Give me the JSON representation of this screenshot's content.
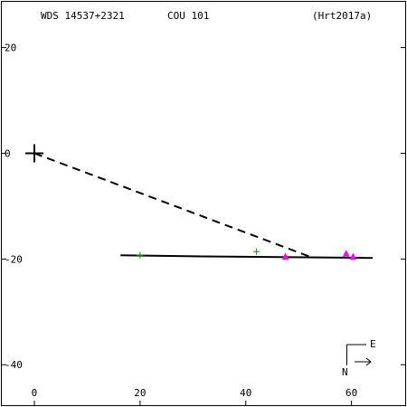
{
  "header": {
    "wds": "WDS 14537+2321",
    "discoverer": "COU 101",
    "reference": "(Hrt2017a)"
  },
  "compass": {
    "east": "E",
    "north": "N"
  },
  "chart_data": {
    "type": "scatter",
    "title": "",
    "xlabel": "",
    "ylabel": "",
    "xlim": [
      -6.5,
      70.5
    ],
    "ylim": [
      -48.0,
      29.0
    ],
    "x_ticks": [
      0,
      20,
      40,
      60
    ],
    "y_ticks": [
      20,
      0,
      -20,
      -40
    ],
    "x_tick_labels": [
      "0",
      "20",
      "40",
      "60"
    ],
    "y_tick_labels": [
      "20",
      "0",
      "-20",
      "-40"
    ],
    "grid": false,
    "primary": {
      "x": 0,
      "y": 0
    },
    "orbit_line": {
      "x": [
        16.3,
        32.0,
        64.0
      ],
      "y": [
        -19.3,
        -19.5,
        -19.8
      ]
    },
    "predicted_line": {
      "x": [
        0,
        52.5
      ],
      "y": [
        0,
        -19.7
      ]
    },
    "series": [
      {
        "marker": "plus",
        "color": "#00a000",
        "points": [
          {
            "x": 20.0,
            "y": -19.3
          },
          {
            "x": 42.0,
            "y": -18.6
          }
        ]
      },
      {
        "marker": "triangle",
        "color": "#ff00ff",
        "points": [
          {
            "x": 47.5,
            "y": -19.6
          },
          {
            "x": 59.0,
            "y": -19.0
          },
          {
            "x": 60.3,
            "y": -19.6
          }
        ]
      }
    ]
  }
}
